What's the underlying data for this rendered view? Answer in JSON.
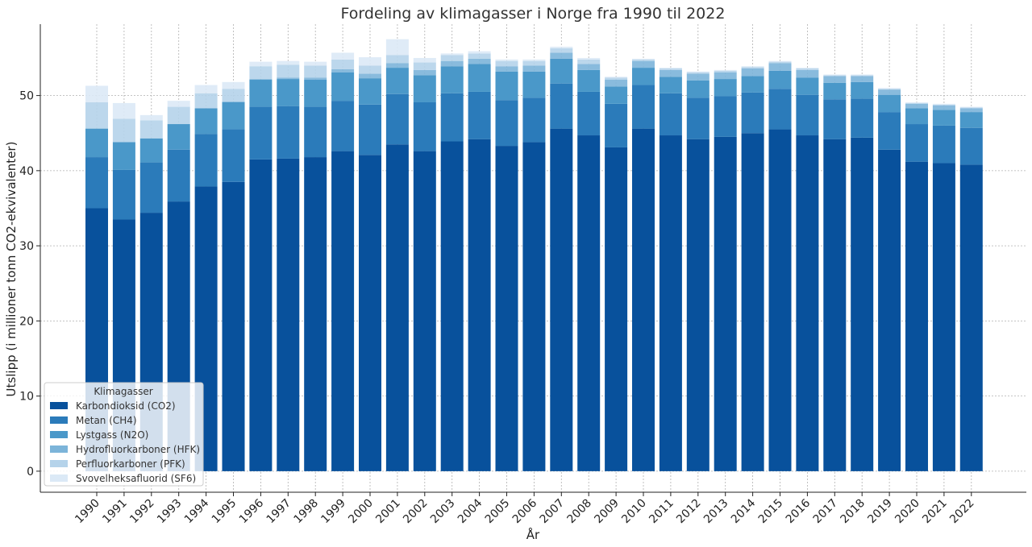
{
  "chart_data": {
    "type": "bar",
    "stacked": true,
    "title": "Fordeling av klimagasser i Norge fra 1990 til 2022",
    "xlabel": "År",
    "ylabel": "Utslipp (i millioner tonn CO2-ekvivalenter)",
    "ylim": [
      -2.8,
      59.5
    ],
    "yticks": [
      0,
      10,
      20,
      30,
      40,
      50
    ],
    "grid": true,
    "legend_title": "Klimagasser",
    "legend_position": "lower-left",
    "categories": [
      "1990",
      "1991",
      "1992",
      "1993",
      "1994",
      "1995",
      "1996",
      "1997",
      "1998",
      "1999",
      "2000",
      "2001",
      "2002",
      "2003",
      "2004",
      "2005",
      "2006",
      "2007",
      "2008",
      "2009",
      "2010",
      "2011",
      "2012",
      "2013",
      "2014",
      "2015",
      "2016",
      "2017",
      "2018",
      "2019",
      "2020",
      "2021",
      "2022"
    ],
    "series": [
      {
        "name": "Karbondioksid (CO2)",
        "color": "#08519c",
        "values": [
          35.0,
          33.5,
          34.4,
          35.9,
          37.9,
          38.5,
          41.5,
          41.6,
          41.8,
          42.6,
          42.1,
          43.5,
          42.6,
          43.9,
          44.2,
          43.3,
          43.8,
          45.6,
          44.7,
          43.1,
          45.6,
          44.7,
          44.2,
          44.5,
          45.0,
          45.5,
          44.7,
          44.2,
          44.4,
          42.8,
          41.2,
          41.0,
          40.8
        ]
      },
      {
        "name": "Metan (CH4)",
        "color": "#2b7bba",
        "values": [
          6.8,
          6.6,
          6.7,
          6.9,
          7.0,
          7.0,
          7.0,
          7.0,
          6.7,
          6.7,
          6.7,
          6.7,
          6.5,
          6.4,
          6.3,
          6.1,
          5.9,
          6.0,
          5.8,
          5.8,
          5.8,
          5.6,
          5.5,
          5.4,
          5.4,
          5.4,
          5.4,
          5.3,
          5.2,
          5.0,
          5.0,
          5.0,
          4.9
        ]
      },
      {
        "name": "Lystgass (N2O)",
        "color": "#4a98c9",
        "values": [
          3.8,
          3.7,
          3.2,
          3.4,
          3.4,
          3.6,
          3.6,
          3.6,
          3.6,
          3.8,
          3.5,
          3.5,
          3.6,
          3.6,
          3.7,
          3.8,
          3.5,
          3.3,
          2.9,
          2.3,
          2.3,
          2.2,
          2.3,
          2.3,
          2.2,
          2.4,
          2.3,
          2.2,
          2.2,
          2.3,
          2.1,
          2.1,
          2.1
        ]
      },
      {
        "name": "Hydrofluorkarboner (HFK)",
        "color": "#7cb4d9",
        "values": [
          0.0,
          0.0,
          0.0,
          0.0,
          0.0,
          0.1,
          0.1,
          0.2,
          0.3,
          0.4,
          0.6,
          0.6,
          0.7,
          0.7,
          0.7,
          0.7,
          0.8,
          0.8,
          0.8,
          0.9,
          0.9,
          0.9,
          0.9,
          0.9,
          1.0,
          1.0,
          1.0,
          0.9,
          0.8,
          0.7,
          0.6,
          0.6,
          0.5
        ]
      },
      {
        "name": "Perfluorkarboner (PFK)",
        "color": "#b5d3ea",
        "values": [
          3.5,
          3.1,
          2.4,
          2.3,
          2.0,
          1.7,
          1.7,
          1.7,
          1.6,
          1.3,
          1.1,
          1.1,
          1.0,
          0.8,
          0.7,
          0.7,
          0.6,
          0.6,
          0.6,
          0.3,
          0.2,
          0.2,
          0.2,
          0.2,
          0.2,
          0.2,
          0.2,
          0.1,
          0.1,
          0.1,
          0.1,
          0.1,
          0.1
        ]
      },
      {
        "name": "Svovelheksafluorid (SF6)",
        "color": "#dbe9f6",
        "values": [
          2.2,
          2.1,
          0.7,
          0.8,
          1.1,
          0.9,
          0.6,
          0.5,
          0.5,
          0.9,
          1.1,
          2.1,
          0.6,
          0.2,
          0.3,
          0.2,
          0.2,
          0.2,
          0.2,
          0.1,
          0.1,
          0.1,
          0.1,
          0.1,
          0.1,
          0.1,
          0.1,
          0.1,
          0.1,
          0.1,
          0.1,
          0.1,
          0.1
        ]
      }
    ]
  }
}
